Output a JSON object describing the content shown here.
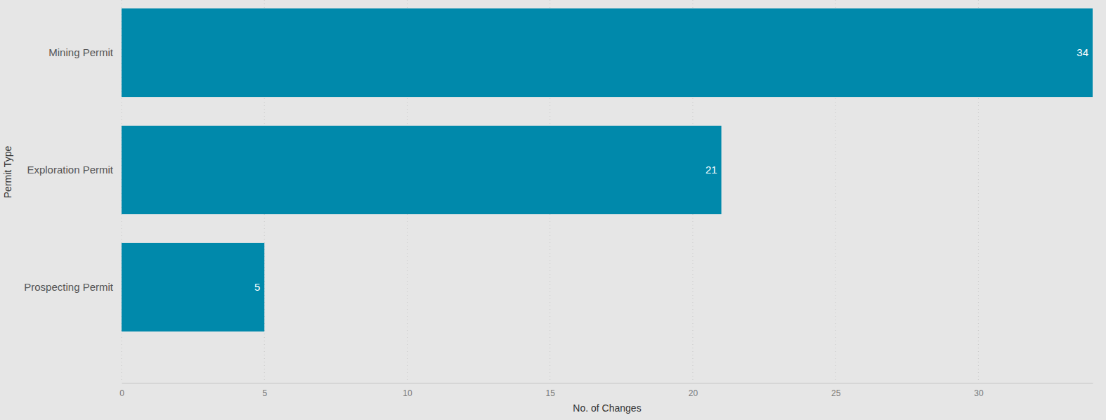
{
  "chart_data": {
    "type": "bar",
    "orientation": "horizontal",
    "categories": [
      "Mining Permit",
      "Exploration Permit",
      "Prospecting Permit"
    ],
    "values": [
      34,
      21,
      5
    ],
    "color": "#0089ab",
    "xlabel": "No. of Changes",
    "ylabel": "Permit Type",
    "xlim": [
      0,
      34
    ],
    "xticks": [
      0,
      5,
      10,
      15,
      20,
      25,
      30
    ],
    "grid": true,
    "data_labels": true
  }
}
